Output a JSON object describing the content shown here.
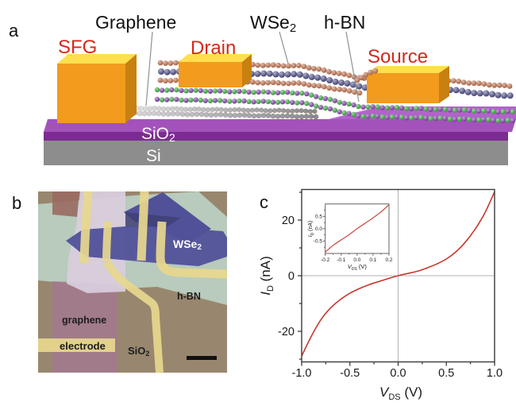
{
  "figure": {
    "panel_a_label": "a",
    "panel_b_label": "b",
    "panel_c_label": "c"
  },
  "panel_a": {
    "labels": {
      "graphene": "Graphene",
      "wse2_base": "WSe",
      "wse2_sub": "2",
      "hbn": "h-BN",
      "sfg": "SFG",
      "drain": "Drain",
      "source": "Source",
      "sio2_base": "SiO",
      "sio2_sub": "2",
      "si": "Si"
    },
    "colors": {
      "gold": "#f29b1d",
      "gold_top": "#ffdf4e",
      "gold_side": "#c8800f",
      "red_label": "#d5281c",
      "sio2_front": "#7c2b92",
      "sio2_top": "#a352bb",
      "sio2_mesa": "#b263cb",
      "si_front": "#8d8d8d",
      "se_sphere": "#b06a4a",
      "w_sphere": "#4c4c7e",
      "boron_sphere": "#3aa23c",
      "nitrogen_sphere": "#7b3fa0",
      "graphene_light": "#dedede",
      "graphene_dark": "#8a8a8a",
      "leader_line": "#909090"
    }
  },
  "panel_b": {
    "labels": {
      "wse2_base": "WSe",
      "wse2_sub": "2",
      "hbn": "h-BN",
      "graphene": "graphene",
      "electrode": "electrode",
      "sio2_base": "SiO",
      "sio2_sub": "2"
    },
    "colors": {
      "background_sio2": "#98876e",
      "hbn_region": "#b9cfc0",
      "thick_flake": "#d8ccdc",
      "graphene_region": "#a2798c",
      "graphene_top": "#9a6a60",
      "wse2_flake": "#51519a",
      "wse2_dark": "#3f3f76",
      "electrode": "#e8d88e",
      "scale_bar": "#111111",
      "label_dark": "#1c1c1c",
      "label_light": "#ffffff"
    }
  },
  "panel_c": {
    "y_axis": {
      "label_base": "I",
      "label_sub": "D",
      "label_unit": " (nA)",
      "ticks": [
        "20",
        "0",
        "-20"
      ]
    },
    "x_axis": {
      "label_base": "V",
      "label_sub": "DS",
      "label_unit": " (V)",
      "ticks": [
        "-1.0",
        "-0.5",
        "0.0",
        "0.5",
        "1.0"
      ]
    },
    "inset": {
      "y_label_base": "I",
      "y_label_sub": "D",
      "y_label_unit": " (nA)",
      "x_label_base": "V",
      "x_label_sub": "DS",
      "x_label_unit": " (V)",
      "y_ticks": [
        "0.5",
        "0.0",
        "-0.5"
      ],
      "x_ticks": [
        "-0.2",
        "-0.1",
        "0.0",
        "0.1",
        "0.2"
      ]
    },
    "curve_color": "#c8372d"
  },
  "chart_data": [
    {
      "type": "line",
      "name": "ID-VDS output curve",
      "xlabel": "V_DS (V)",
      "ylabel": "I_D (nA)",
      "xlim": [
        -1.0,
        1.0
      ],
      "ylim": [
        -31,
        31
      ],
      "x_ticks": [
        -1.0,
        -0.5,
        0.0,
        0.5,
        1.0
      ],
      "y_ticks": [
        -20,
        0,
        20
      ],
      "color": "#c8372d",
      "x": [
        -1.0,
        -0.9,
        -0.8,
        -0.7,
        -0.6,
        -0.5,
        -0.4,
        -0.3,
        -0.2,
        -0.1,
        0.0,
        0.1,
        0.2,
        0.3,
        0.4,
        0.5,
        0.6,
        0.7,
        0.8,
        0.9,
        1.0
      ],
      "y": [
        -28.9,
        -21.8,
        -15.8,
        -11.6,
        -8.6,
        -6.3,
        -4.6,
        -3.2,
        -2.1,
        -1.0,
        0.0,
        0.8,
        1.6,
        2.8,
        4.2,
        6.0,
        8.6,
        12.2,
        16.8,
        22.6,
        30.2
      ]
    },
    {
      "type": "line",
      "name": "ID-VDS inset (low bias)",
      "xlabel": "V_DS (V)",
      "ylabel": "I_D (nA)",
      "xlim": [
        -0.2,
        0.2
      ],
      "ylim": [
        -1,
        1
      ],
      "x_ticks": [
        -0.2,
        -0.1,
        0.0,
        0.1,
        0.2
      ],
      "y_ticks": [
        -0.5,
        0.0,
        0.5
      ],
      "color": "#c8372d",
      "x": [
        -0.2,
        -0.15,
        -0.1,
        -0.05,
        0.0,
        0.05,
        0.1,
        0.15,
        0.2
      ],
      "y": [
        -0.95,
        -0.67,
        -0.45,
        -0.24,
        0.0,
        0.22,
        0.44,
        0.68,
        0.97
      ]
    }
  ]
}
